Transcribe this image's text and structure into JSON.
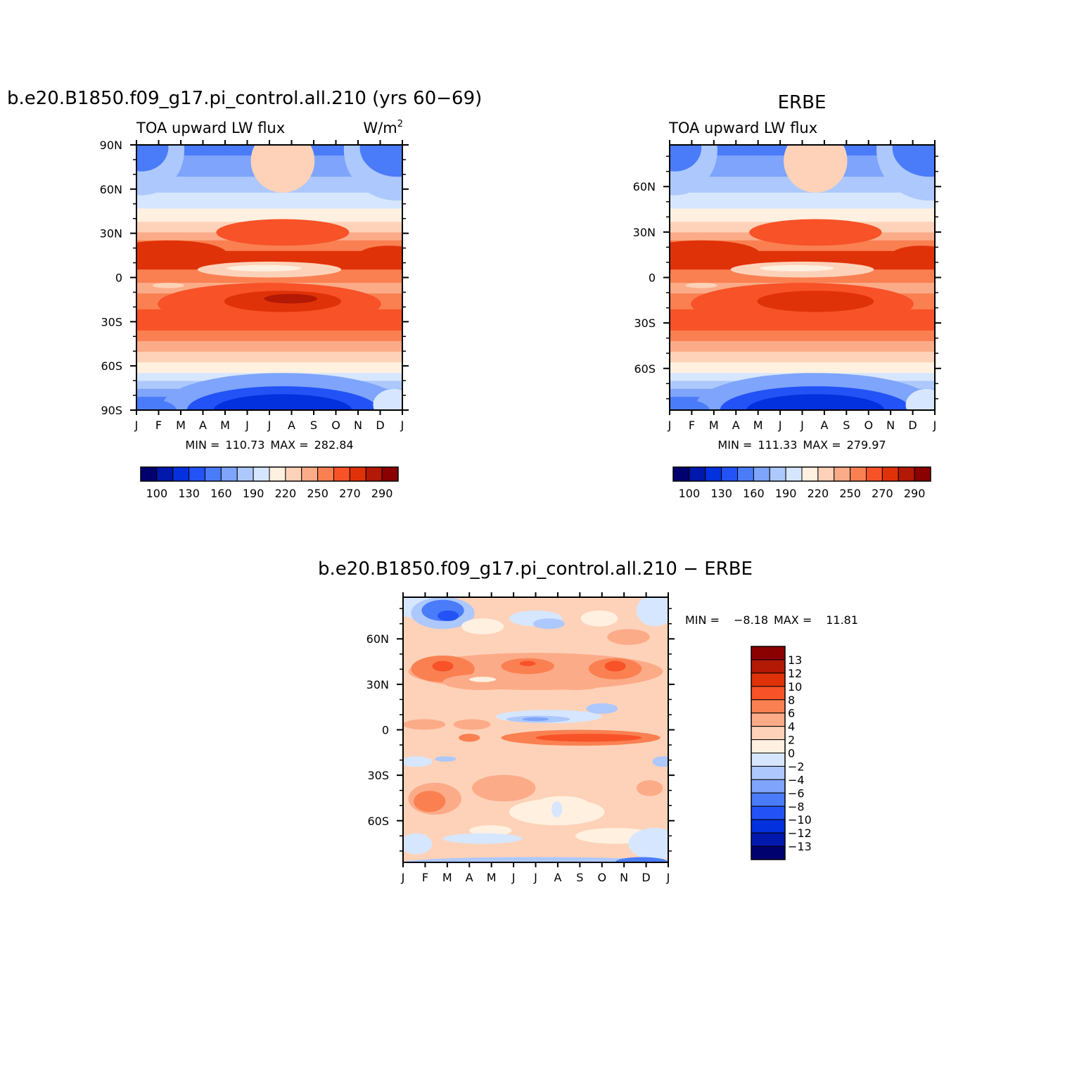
{
  "chart_data": [
    {
      "type": "heatmap",
      "id": "model",
      "title": "b.e20.B1850.f09_g17.pi_control.all.210 (yrs 60−69)",
      "left_subtitle": "TOA upward LW flux",
      "right_subtitle_base": "W/m",
      "right_subtitle_sup": "2",
      "xticks": [
        "J",
        "F",
        "M",
        "A",
        "M",
        "J",
        "J",
        "A",
        "S",
        "O",
        "N",
        "D",
        "J"
      ],
      "yticks": [
        {
          "label": "90N",
          "lat": 90
        },
        {
          "label": "60N",
          "lat": 60
        },
        {
          "label": "30N",
          "lat": 30
        },
        {
          "label": "0",
          "lat": 0
        },
        {
          "label": "30S",
          "lat": -30
        },
        {
          "label": "60S",
          "lat": -60
        },
        {
          "label": "90S",
          "lat": -90
        }
      ],
      "ylim": [
        -90,
        90
      ],
      "min_label": "MIN =",
      "min_value": "110.73",
      "max_label": "MAX =",
      "max_value": "282.84",
      "colorbar_ticks": [
        "100",
        "130",
        "160",
        "190",
        "220",
        "250",
        "270",
        "290"
      ]
    },
    {
      "type": "heatmap",
      "id": "erbe",
      "title": "ERBE",
      "left_subtitle": "TOA upward LW flux",
      "xticks": [
        "J",
        "F",
        "M",
        "A",
        "M",
        "J",
        "J",
        "A",
        "S",
        "O",
        "N",
        "D",
        "J"
      ],
      "yticks": [
        {
          "label": "60N",
          "lat": 60
        },
        {
          "label": "30N",
          "lat": 30
        },
        {
          "label": "0",
          "lat": 0
        },
        {
          "label": "30S",
          "lat": -30
        },
        {
          "label": "60S",
          "lat": -60
        }
      ],
      "ylim": [
        -87.5,
        87.5
      ],
      "min_label": "MIN =",
      "min_value": "111.33",
      "max_label": "MAX =",
      "max_value": "279.97",
      "colorbar_ticks": [
        "100",
        "130",
        "160",
        "190",
        "220",
        "250",
        "270",
        "290"
      ]
    },
    {
      "type": "heatmap",
      "id": "diff",
      "title": "b.e20.B1850.f09_g17.pi_control.all.210 − ERBE",
      "xticks": [
        "J",
        "F",
        "M",
        "A",
        "M",
        "J",
        "J",
        "A",
        "S",
        "O",
        "N",
        "D",
        "J"
      ],
      "yticks": [
        {
          "label": "60N",
          "lat": 60
        },
        {
          "label": "30N",
          "lat": 30
        },
        {
          "label": "0",
          "lat": 0
        },
        {
          "label": "30S",
          "lat": -30
        },
        {
          "label": "60S",
          "lat": -60
        }
      ],
      "ylim": [
        -87.5,
        87.5
      ],
      "min_label": "MIN =",
      "min_value": "−8.18",
      "max_label": "MAX =",
      "max_value": "11.81",
      "colorbar_ticks": [
        "13",
        "12",
        "10",
        "8",
        "6",
        "4",
        "2",
        "0",
        "−2",
        "−4",
        "−6",
        "−8",
        "−10",
        "−12",
        "−13"
      ]
    }
  ],
  "palette": [
    "#00006e",
    "#0018ac",
    "#0331dd",
    "#2353f6",
    "#4a7cf9",
    "#7ea4fb",
    "#adc8fd",
    "#d6e6fe",
    "#fff0e0",
    "#fed2b8",
    "#fcab88",
    "#fa8052",
    "#f85228",
    "#e03208",
    "#b31904",
    "#8b0000"
  ]
}
